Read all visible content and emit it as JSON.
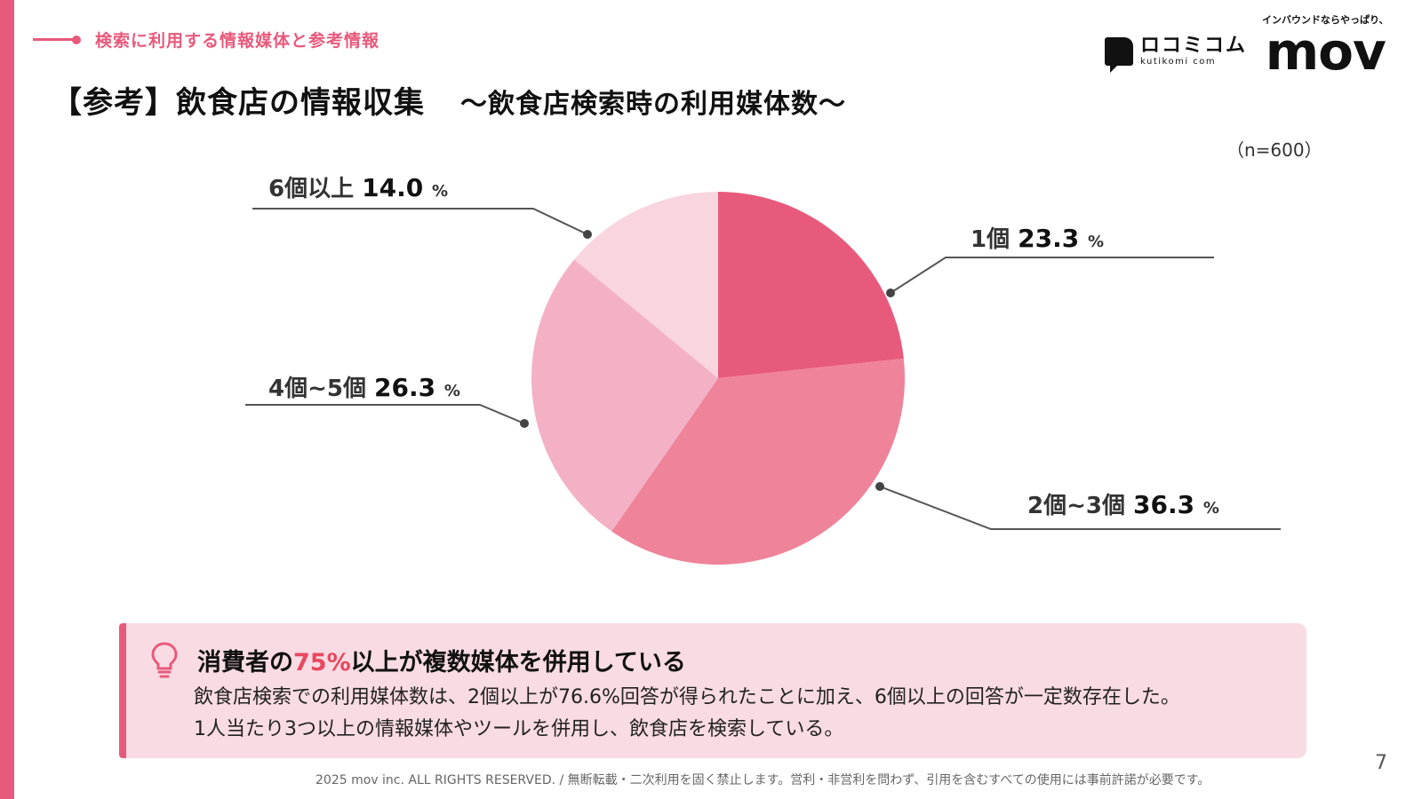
{
  "section_tag": "検索に利用する情報媒体と参考情報",
  "title": {
    "main": "【参考】飲食店の情報収集",
    "sub": "〜飲食店検索時の利用媒体数〜"
  },
  "logos": {
    "kuchikomi_jp": "ロコミコム",
    "kuchikomi_en": "kutikomi com",
    "mov_tagline": "インバウンドならやっぱり、",
    "mov_word": "mov"
  },
  "sample_note": "（n=600）",
  "colors": {
    "accent": "#e85a7c",
    "slice_1": "#e85a7c",
    "slice_2": "#ef8399",
    "slice_3": "#f4b1c6",
    "slice_4": "#f8d5df"
  },
  "chart_data": {
    "type": "pie",
    "slices": [
      {
        "label": "1個",
        "value": 23.3,
        "unit": "%",
        "color": "#e85a7c"
      },
      {
        "label": "2個~3個",
        "value": 36.3,
        "unit": "%",
        "color": "#ef8399"
      },
      {
        "label": "4個~5個",
        "value": 26.3,
        "unit": "%",
        "color": "#f4b1c6"
      },
      {
        "label": "6個以上",
        "value": 14.0,
        "unit": "%",
        "color": "#f8d5df"
      }
    ]
  },
  "callout": {
    "headline_pre": "消費者の",
    "headline_accent": "75%",
    "headline_post": "以上が複数媒体を併用している",
    "body_line1": "飲食店検索での利用媒体数は、2個以上が76.6%回答が得られたことに加え、6個以上の回答が一定数存在した。",
    "body_line2": "1人当たり3つ以上の情報媒体やツールを併用し、飲食店を検索している。"
  },
  "footer": "2025 mov inc. ALL RIGHTS RESERVED. / 無断転載・二次利用を固く禁止します。営利・非営利を問わず、引用を含むすべての使用には事前許諾が必要です。",
  "page_number": "7"
}
